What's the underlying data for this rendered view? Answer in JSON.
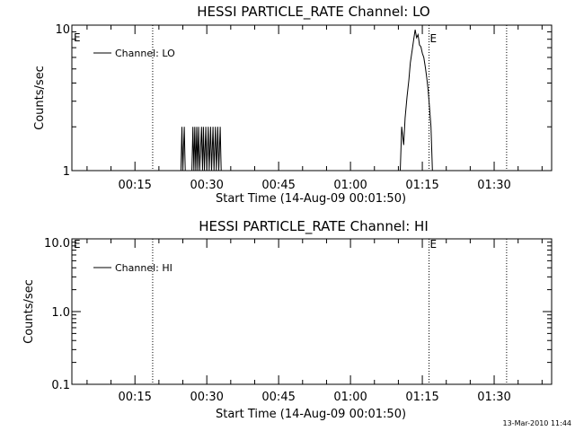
{
  "chart_data": [
    {
      "type": "line",
      "title": "HESSI PARTICLE_RATE Channel: LO",
      "xlabel": "Start Time (14-Aug-09 00:01:50)",
      "ylabel": "Counts/sec",
      "yscale": "log",
      "ylim": [
        1,
        10
      ],
      "y_tick_labels": [
        "1",
        "10"
      ],
      "x_tick_labels": [
        "00:15",
        "00:30",
        "00:45",
        "01:00",
        "01:15",
        "01:30"
      ],
      "x_ticks_min": [
        15,
        30,
        45,
        60,
        75,
        90
      ],
      "xlim_min": [
        1.83,
        102
      ],
      "legend": {
        "position": "top-left",
        "entries": [
          "Channel: LO"
        ]
      },
      "grid": false,
      "markers": [
        {
          "x_min": 18.7,
          "label": ""
        },
        {
          "x_min": 76.4,
          "label": "E"
        },
        {
          "x_min": 92.6,
          "label": ""
        }
      ],
      "left_edge_label": "E",
      "series": [
        {
          "name": "Channel: LO",
          "segments": [
            [
              [
                24.6,
                1
              ],
              [
                24.8,
                2
              ],
              [
                25.0,
                1
              ],
              [
                25.3,
                2
              ],
              [
                25.5,
                1
              ],
              [
                26.9,
                1
              ],
              [
                27.1,
                2
              ],
              [
                27.3,
                1
              ],
              [
                27.5,
                2
              ],
              [
                27.7,
                1
              ],
              [
                27.9,
                2
              ],
              [
                28.1,
                1
              ],
              [
                28.3,
                2
              ],
              [
                28.5,
                1
              ],
              [
                28.9,
                2
              ],
              [
                29.1,
                1
              ],
              [
                29.3,
                2
              ],
              [
                29.5,
                1
              ],
              [
                29.8,
                2
              ],
              [
                30.0,
                1
              ],
              [
                30.3,
                2
              ],
              [
                30.5,
                1
              ],
              [
                30.8,
                2
              ],
              [
                31.0,
                1
              ],
              [
                31.3,
                2
              ],
              [
                31.5,
                1
              ],
              [
                31.8,
                2
              ],
              [
                32.0,
                1
              ],
              [
                32.3,
                2
              ],
              [
                32.5,
                1
              ],
              [
                32.8,
                2
              ],
              [
                33.0,
                1
              ]
            ],
            [
              [
                70.4,
                1
              ],
              [
                70.7,
                2
              ],
              [
                71.1,
                1.5
              ],
              [
                71.4,
                2.3
              ],
              [
                71.8,
                3.2
              ],
              [
                72.2,
                4.2
              ],
              [
                72.5,
                5.5
              ],
              [
                72.9,
                6.8
              ],
              [
                73.2,
                8.0
              ],
              [
                73.5,
                9.3
              ],
              [
                73.8,
                8.2
              ],
              [
                74.1,
                8.6
              ],
              [
                74.4,
                7.3
              ],
              [
                74.7,
                7.1
              ],
              [
                75.0,
                6.4
              ],
              [
                75.3,
                6.0
              ],
              [
                75.6,
                5.2
              ],
              [
                75.9,
                4.4
              ],
              [
                76.2,
                3.6
              ],
              [
                76.5,
                2.7
              ],
              [
                76.8,
                2.0
              ],
              [
                77.0,
                1.3
              ],
              [
                77.1,
                1
              ]
            ]
          ]
        }
      ]
    },
    {
      "type": "line",
      "title": "HESSI PARTICLE_RATE Channel: HI",
      "xlabel": "Start Time (14-Aug-09 00:01:50)",
      "ylabel": "Counts/sec",
      "yscale": "log",
      "ylim": [
        0.1,
        10
      ],
      "y_tick_labels": [
        "0.1",
        "1.0",
        "10.0"
      ],
      "x_tick_labels": [
        "00:15",
        "00:30",
        "00:45",
        "01:00",
        "01:15",
        "01:30"
      ],
      "x_ticks_min": [
        15,
        30,
        45,
        60,
        75,
        90
      ],
      "xlim_min": [
        1.83,
        102
      ],
      "legend": {
        "position": "top-left",
        "entries": [
          "Channel: HI"
        ]
      },
      "grid": false,
      "markers": [
        {
          "x_min": 18.7,
          "label": ""
        },
        {
          "x_min": 76.4,
          "label": "E"
        },
        {
          "x_min": 92.6,
          "label": ""
        }
      ],
      "left_edge_label": "E",
      "series": [
        {
          "name": "Channel: HI",
          "segments": []
        }
      ]
    }
  ],
  "footer": {
    "timestamp": "13-Mar-2010 11:44"
  }
}
